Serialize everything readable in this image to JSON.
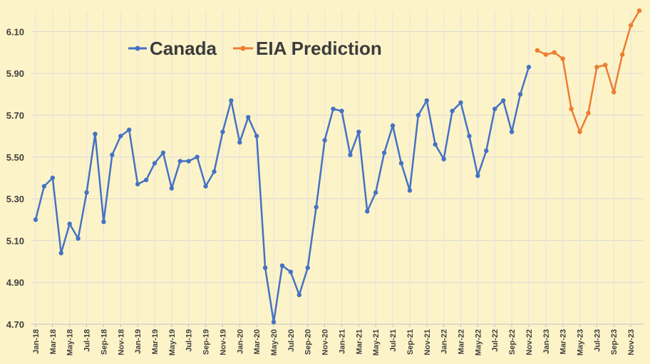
{
  "chart_data": {
    "type": "line",
    "title": "",
    "xlabel": "",
    "ylabel": "",
    "ylim": [
      4.7,
      6.2
    ],
    "yticks": [
      "4.70",
      "4.90",
      "5.10",
      "5.30",
      "5.50",
      "5.70",
      "5.90",
      "6.10"
    ],
    "grid": true,
    "legend_position": "top-left",
    "x_tick_labels": [
      "Jan-18",
      "Mar-18",
      "May-18",
      "Jul-18",
      "Sep-18",
      "Nov-18",
      "Jan-19",
      "Mar-19",
      "May-19",
      "Jul-19",
      "Sep-19",
      "Nov-19",
      "Jan-20",
      "Mar-20",
      "May-20",
      "Jul-20",
      "Sep-20",
      "Nov-20",
      "Jan-21",
      "Mar-21",
      "May-21",
      "Jul-21",
      "Sep-21",
      "Nov-21",
      "Jan-22",
      "Mar-22",
      "May-22",
      "Jul-22",
      "Sep-22",
      "Nov-22",
      "Jan-23",
      "Mar-23",
      "May-23",
      "Jul-23",
      "Sep-23",
      "Nov-23"
    ],
    "series": [
      {
        "name": "Canada",
        "color": "#4472c4",
        "x": [
          "Jan-18",
          "Feb-18",
          "Mar-18",
          "Apr-18",
          "May-18",
          "Jun-18",
          "Jul-18",
          "Aug-18",
          "Sep-18",
          "Oct-18",
          "Nov-18",
          "Dec-18",
          "Jan-19",
          "Feb-19",
          "Mar-19",
          "Apr-19",
          "May-19",
          "Jun-19",
          "Jul-19",
          "Aug-19",
          "Sep-19",
          "Oct-19",
          "Nov-19",
          "Dec-19",
          "Jan-20",
          "Feb-20",
          "Mar-20",
          "Apr-20",
          "May-20",
          "Jun-20",
          "Jul-20",
          "Aug-20",
          "Sep-20",
          "Oct-20",
          "Nov-20",
          "Dec-20",
          "Jan-21",
          "Feb-21",
          "Mar-21",
          "Apr-21",
          "May-21",
          "Jun-21",
          "Jul-21",
          "Aug-21",
          "Sep-21",
          "Oct-21",
          "Nov-21",
          "Dec-21",
          "Jan-22",
          "Feb-22",
          "Mar-22",
          "Apr-22",
          "May-22",
          "Jun-22",
          "Jul-22",
          "Aug-22",
          "Sep-22",
          "Oct-22",
          "Nov-22"
        ],
        "values": [
          5.2,
          5.36,
          5.4,
          5.04,
          5.18,
          5.11,
          5.33,
          5.61,
          5.19,
          5.51,
          5.6,
          5.63,
          5.37,
          5.39,
          5.47,
          5.52,
          5.35,
          5.48,
          5.48,
          5.5,
          5.36,
          5.43,
          5.62,
          5.77,
          5.57,
          5.69,
          5.6,
          4.97,
          4.71,
          4.98,
          4.95,
          4.84,
          4.97,
          5.26,
          5.58,
          5.73,
          5.72,
          5.51,
          5.62,
          5.24,
          5.33,
          5.52,
          5.65,
          5.47,
          5.34,
          5.7,
          5.77,
          5.56,
          5.49,
          5.72,
          5.76,
          5.6,
          5.41,
          5.53,
          5.73,
          5.77,
          5.62,
          5.8,
          5.93
        ]
      },
      {
        "name": "EIA Prediction",
        "color": "#ed7d31",
        "x": [
          "Dec-22",
          "Jan-23",
          "Feb-23",
          "Mar-23",
          "Apr-23",
          "May-23",
          "Jun-23",
          "Jul-23",
          "Aug-23",
          "Sep-23",
          "Oct-23",
          "Nov-23",
          "Dec-23"
        ],
        "values": [
          6.01,
          5.99,
          6.0,
          5.97,
          5.73,
          5.62,
          5.71,
          5.93,
          5.94,
          5.81,
          5.99,
          6.13,
          6.2
        ]
      }
    ]
  }
}
